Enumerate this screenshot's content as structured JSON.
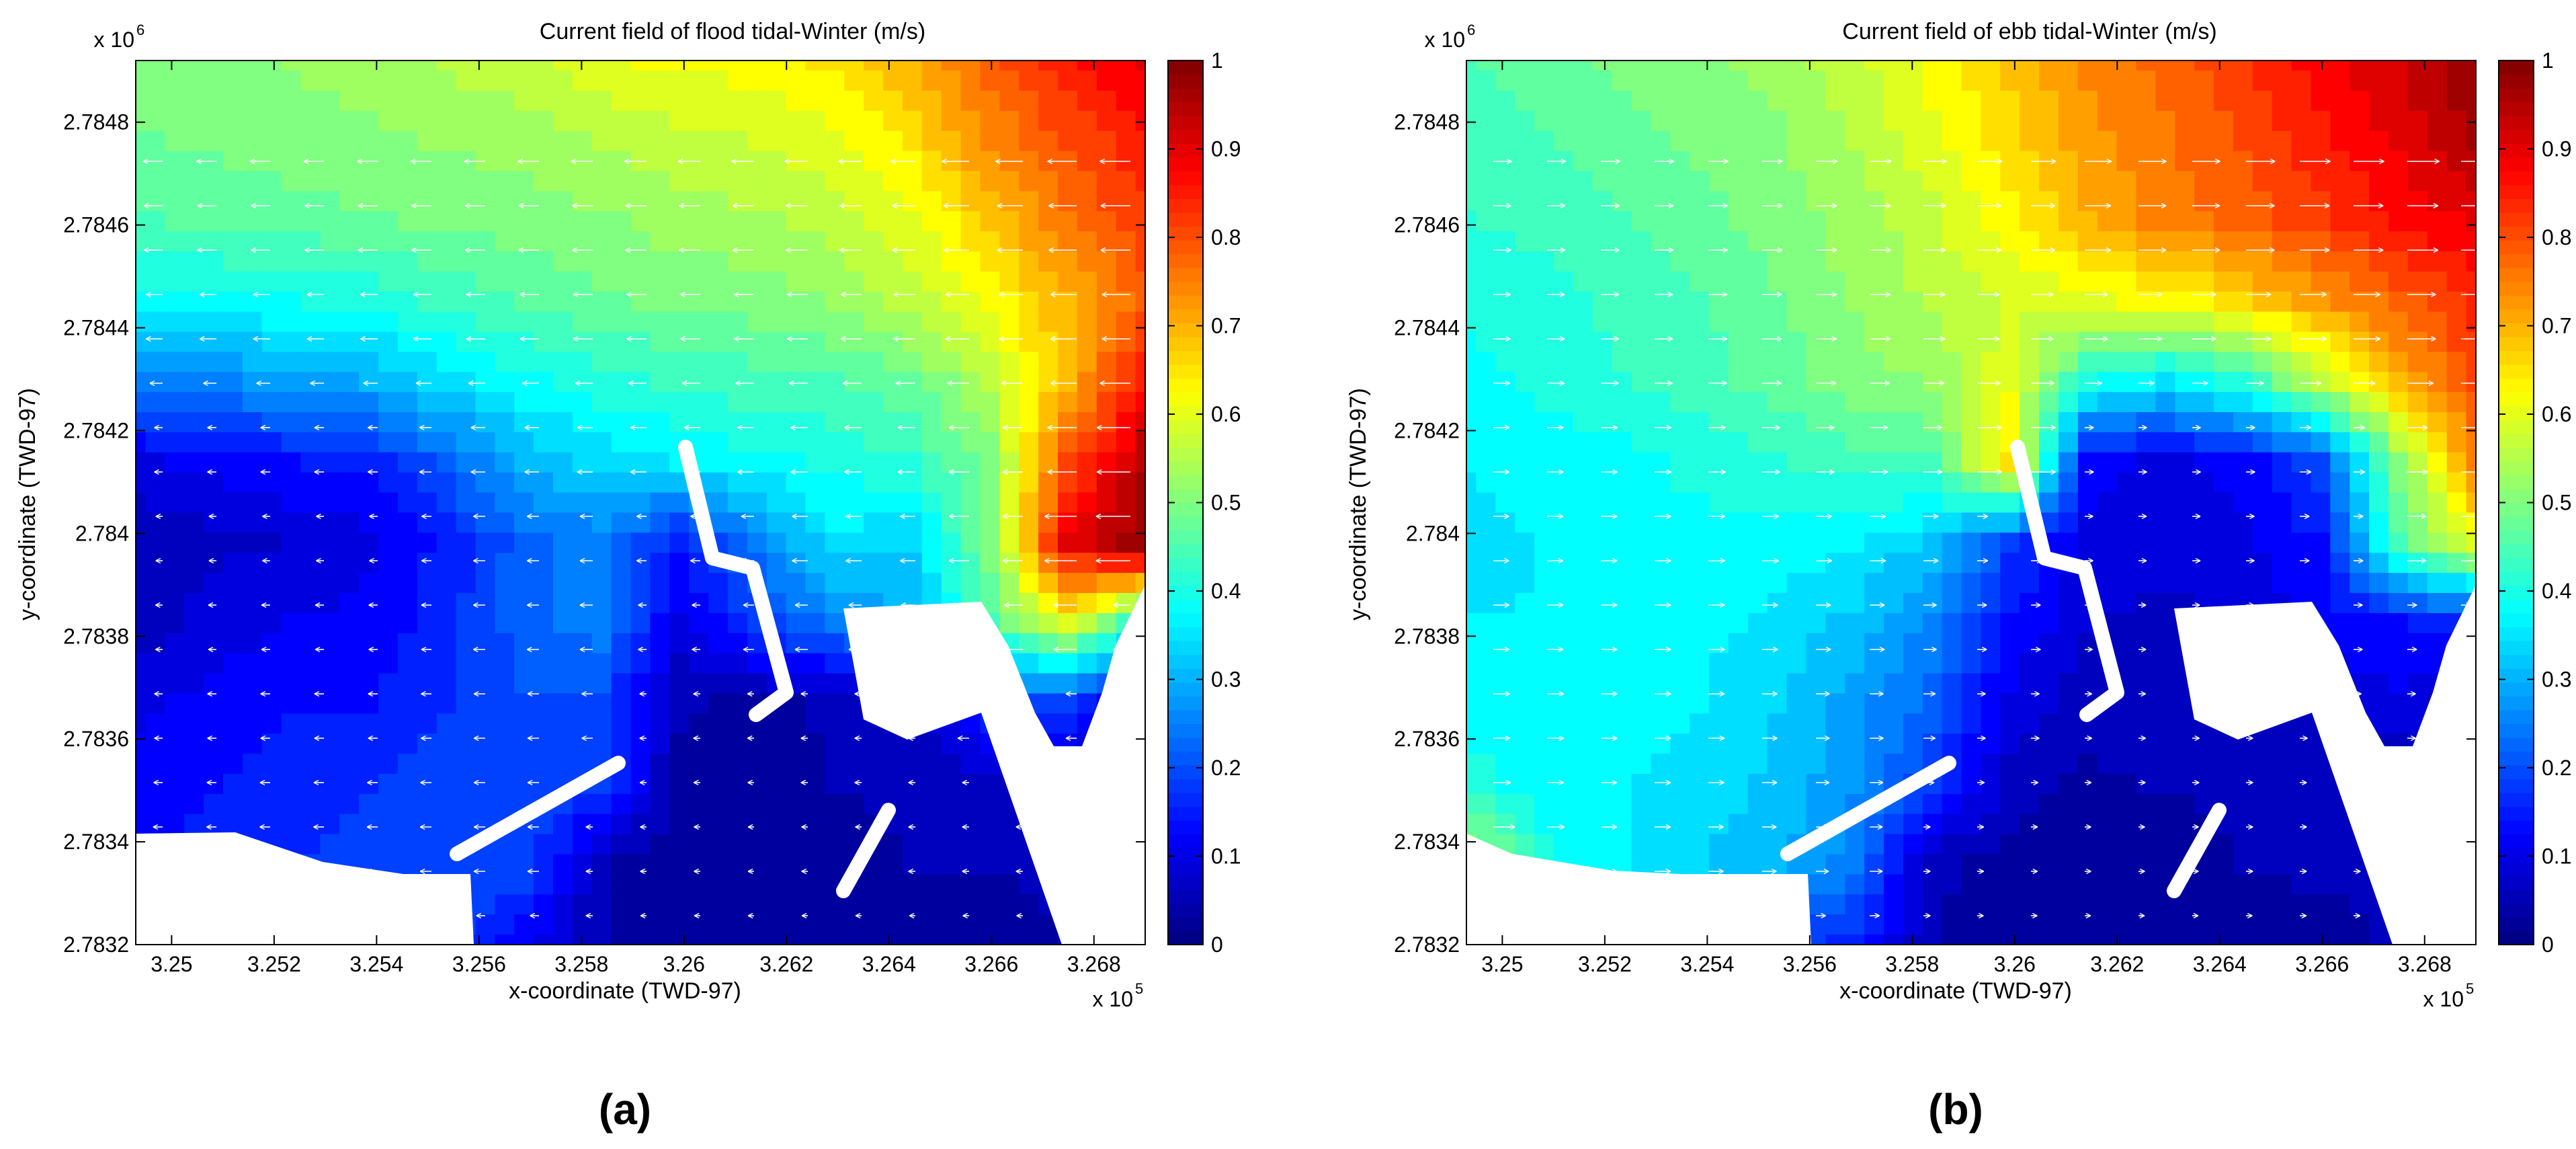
{
  "colorbar": {
    "colormap": "jet",
    "range": [
      0,
      1
    ],
    "ticks": [
      0,
      0.1,
      0.2,
      0.3,
      0.4,
      0.5,
      0.6,
      0.7,
      0.8,
      0.9,
      1
    ],
    "tick_labels": [
      "0",
      "0.1",
      "0.2",
      "0.3",
      "0.4",
      "0.5",
      "0.6",
      "0.7",
      "0.8",
      "0.9",
      "1"
    ]
  },
  "chart_data": [
    {
      "type": "heatmap",
      "panel_label": "(a)",
      "title": "Current field of flood tidal-Winter (m/s)",
      "xlabel": "x-coordinate (TWD-97)",
      "ylabel": "y-coordinate (TWD-97)",
      "x_multiplier_label": "x 10",
      "x_multiplier_exp": "5",
      "y_multiplier_label": "x 10",
      "y_multiplier_exp": "6",
      "xlim": [
        3.2493,
        3.269
      ],
      "ylim": [
        2.7832,
        2.78492
      ],
      "xticks": [
        3.25,
        3.252,
        3.254,
        3.256,
        3.258,
        3.26,
        3.262,
        3.264,
        3.266,
        3.268
      ],
      "xtick_labels": [
        "3.25",
        "3.252",
        "3.254",
        "3.256",
        "3.258",
        "3.26",
        "3.262",
        "3.264",
        "3.266",
        "3.268"
      ],
      "yticks": [
        2.7832,
        2.7834,
        2.7836,
        2.7838,
        2.784,
        2.7842,
        2.7844,
        2.7846,
        2.7848
      ],
      "ytick_labels": [
        "2.7832",
        "2.7834",
        "2.7836",
        "2.7838",
        "2.784",
        "2.7842",
        "2.7844",
        "2.7846",
        "2.7848"
      ],
      "colorbar_range": [
        0,
        1
      ],
      "arrow_direction": "west",
      "speed_grid": [
        [
          0.5,
          0.5,
          0.52,
          0.53,
          0.55,
          0.57,
          0.6,
          0.62,
          0.62,
          0.65,
          0.7,
          0.78,
          0.85,
          0.9
        ],
        [
          0.48,
          0.49,
          0.5,
          0.51,
          0.52,
          0.53,
          0.55,
          0.57,
          0.58,
          0.6,
          0.65,
          0.74,
          0.8,
          0.85
        ],
        [
          0.45,
          0.46,
          0.47,
          0.48,
          0.49,
          0.5,
          0.51,
          0.53,
          0.54,
          0.56,
          0.6,
          0.68,
          0.76,
          0.82
        ],
        [
          0.38,
          0.38,
          0.39,
          0.4,
          0.43,
          0.46,
          0.48,
          0.49,
          0.5,
          0.52,
          0.56,
          0.62,
          0.7,
          0.78
        ],
        [
          0.25,
          0.26,
          0.28,
          0.3,
          0.34,
          0.38,
          0.41,
          0.43,
          0.44,
          0.45,
          0.48,
          0.55,
          0.7,
          0.85
        ],
        [
          0.1,
          0.12,
          0.14,
          0.15,
          0.22,
          0.3,
          0.34,
          0.36,
          0.38,
          0.4,
          0.42,
          0.5,
          0.8,
          0.95
        ],
        [
          0.05,
          0.07,
          0.08,
          0.1,
          0.15,
          0.22,
          0.25,
          0.15,
          0.25,
          0.35,
          0.33,
          0.5,
          0.9,
          0.98
        ],
        [
          0.06,
          0.09,
          0.11,
          0.12,
          0.16,
          0.22,
          0.25,
          0.1,
          0.18,
          0.25,
          0.3,
          0.45,
          0.6,
          0.4
        ],
        [
          0.1,
          0.12,
          0.14,
          0.14,
          0.17,
          0.2,
          0.19,
          0.05,
          0.04,
          0.05,
          null,
          0.2,
          0.18,
          null
        ],
        [
          0.12,
          0.14,
          0.16,
          0.17,
          0.19,
          0.2,
          0.18,
          0.04,
          0.03,
          null,
          null,
          null,
          null,
          null
        ],
        [
          0.14,
          0.15,
          0.17,
          0.18,
          0.2,
          0.2,
          null,
          0.03,
          0.02,
          0.03,
          null,
          null,
          null,
          null
        ],
        [
          0.12,
          0.12,
          0.14,
          0.15,
          0.18,
          0.12,
          null,
          0.02,
          0.02,
          0.02,
          0.02,
          0.03,
          null,
          null
        ]
      ]
    },
    {
      "type": "heatmap",
      "panel_label": "(b)",
      "title": "Current field of ebb tidal-Winter (m/s)",
      "xlabel": "x-coordinate (TWD-97)",
      "ylabel": "y-coordinate (TWD-97)",
      "x_multiplier_label": "x 10",
      "x_multiplier_exp": "5",
      "y_multiplier_label": "x 10",
      "y_multiplier_exp": "6",
      "xlim": [
        3.2493,
        3.269
      ],
      "ylim": [
        2.7832,
        2.78492
      ],
      "xticks": [
        3.25,
        3.252,
        3.254,
        3.256,
        3.258,
        3.26,
        3.262,
        3.264,
        3.266,
        3.268
      ],
      "xtick_labels": [
        "3.25",
        "3.252",
        "3.254",
        "3.256",
        "3.258",
        "3.26",
        "3.262",
        "3.264",
        "3.266",
        "3.268"
      ],
      "yticks": [
        2.7832,
        2.7834,
        2.7836,
        2.7838,
        2.784,
        2.7842,
        2.7844,
        2.7846,
        2.7848
      ],
      "ytick_labels": [
        "2.7832",
        "2.7834",
        "2.7836",
        "2.7838",
        "2.784",
        "2.7842",
        "2.7844",
        "2.7846",
        "2.7848"
      ],
      "colorbar_range": [
        0,
        1
      ],
      "arrow_direction": "east",
      "speed_grid": [
        [
          0.45,
          0.47,
          0.49,
          0.51,
          0.53,
          0.57,
          0.62,
          0.68,
          0.74,
          0.78,
          0.82,
          0.88,
          0.92,
          0.98
        ],
        [
          0.44,
          0.45,
          0.47,
          0.49,
          0.51,
          0.55,
          0.6,
          0.66,
          0.72,
          0.76,
          0.8,
          0.85,
          0.9,
          0.96
        ],
        [
          0.42,
          0.43,
          0.45,
          0.47,
          0.5,
          0.53,
          0.57,
          0.63,
          0.7,
          0.75,
          0.78,
          0.82,
          0.86,
          0.9
        ],
        [
          0.4,
          0.41,
          0.43,
          0.45,
          0.48,
          0.52,
          0.55,
          0.58,
          0.6,
          0.62,
          0.66,
          0.72,
          0.78,
          0.84
        ],
        [
          0.38,
          0.4,
          0.42,
          0.44,
          0.47,
          0.5,
          0.52,
          0.6,
          0.4,
          0.35,
          0.42,
          0.55,
          0.7,
          0.8
        ],
        [
          0.36,
          0.37,
          0.38,
          0.4,
          0.42,
          0.44,
          0.45,
          0.65,
          0.12,
          0.1,
          0.12,
          0.2,
          0.5,
          0.75
        ],
        [
          0.35,
          0.36,
          0.37,
          0.38,
          0.38,
          0.36,
          0.32,
          0.18,
          0.1,
          0.09,
          0.1,
          0.14,
          0.45,
          0.6
        ],
        [
          0.36,
          0.36,
          0.37,
          0.37,
          0.35,
          0.32,
          0.26,
          0.14,
          0.08,
          0.07,
          0.08,
          0.12,
          0.14,
          0.15
        ],
        [
          0.38,
          0.38,
          0.37,
          0.36,
          0.33,
          0.28,
          0.22,
          0.1,
          0.06,
          0.06,
          null,
          0.08,
          0.1,
          null
        ],
        [
          0.4,
          0.38,
          0.36,
          0.35,
          0.32,
          0.27,
          0.18,
          0.06,
          0.04,
          null,
          null,
          null,
          null,
          null
        ],
        [
          0.55,
          0.4,
          0.36,
          0.33,
          0.3,
          0.25,
          null,
          0.04,
          0.03,
          0.03,
          null,
          null,
          null,
          null
        ],
        [
          0.58,
          0.32,
          0.28,
          0.26,
          0.2,
          0.15,
          null,
          0.03,
          0.02,
          0.02,
          0.03,
          0.04,
          null,
          null
        ]
      ]
    }
  ]
}
